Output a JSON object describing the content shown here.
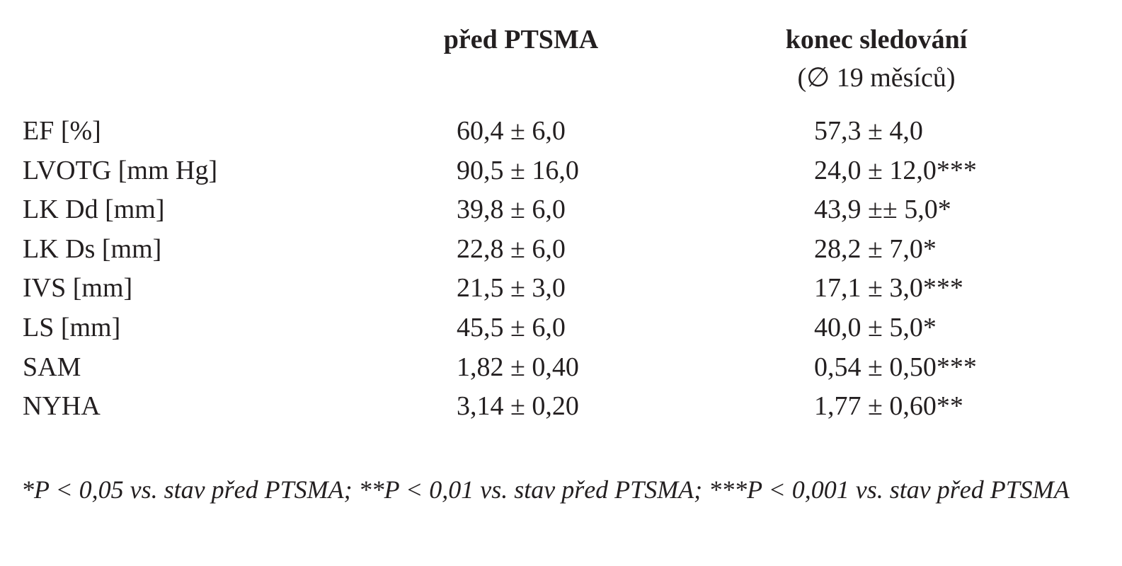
{
  "table": {
    "headers": [
      "před PTSMA",
      "konec sledování"
    ],
    "header_note": "(∅ 19 měsíců)",
    "rows": [
      [
        "EF [%]",
        "60,4 ± 6,0",
        "57,3 ± 4,0"
      ],
      [
        "LVOTG [mm Hg]",
        "90,5 ± 16,0",
        "24,0 ± 12,0***"
      ],
      [
        "LK Dd [mm]",
        "39,8 ± 6,0",
        "43,9 ±± 5,0*"
      ],
      [
        "LK Ds [mm]",
        "22,8 ± 6,0",
        "28,2 ± 7,0*"
      ],
      [
        "IVS [mm]",
        "21,5 ± 3,0",
        "17,1 ± 3,0***"
      ],
      [
        "LS [mm]",
        "45,5 ± 6,0",
        "40,0 ± 5,0*"
      ],
      [
        "SAM",
        "1,82 ± 0,40",
        "0,54 ± 0,50***"
      ],
      [
        "NYHA",
        "3,14 ± 0,20",
        "1,77 ± 0,60**"
      ]
    ],
    "footnote": "*P < 0,05 vs. stav před PTSMA; **P < 0,01 vs. stav před PTSMA; ***P < 0,001 vs. stav před PTSMA"
  }
}
